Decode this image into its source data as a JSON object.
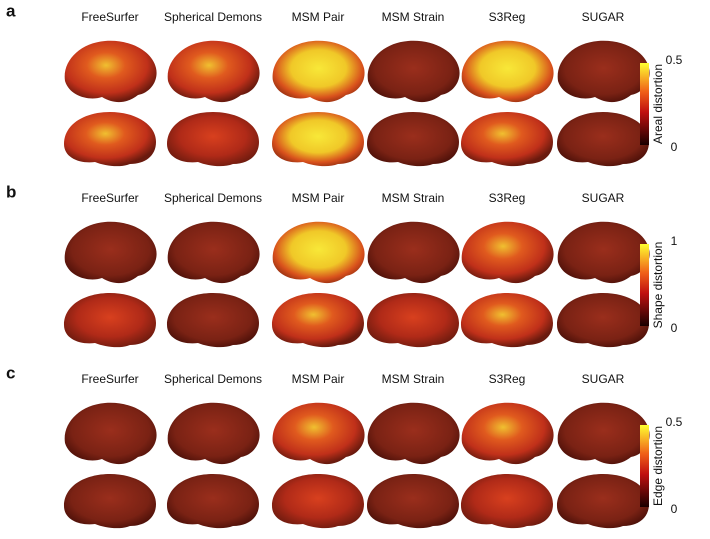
{
  "panels": [
    {
      "label": "a",
      "methods": [
        "FreeSurfer",
        "Spherical Demons",
        "MSM Pair",
        "MSM Strain",
        "S3Reg",
        "SUGAR"
      ],
      "colorbar": {
        "title": "Areal distortion",
        "max": 0.5,
        "min": 0
      }
    },
    {
      "label": "b",
      "methods": [
        "FreeSurfer",
        "Spherical Demons",
        "MSM Pair",
        "MSM Strain",
        "S3Reg",
        "SUGAR"
      ],
      "colorbar": {
        "title": "Shape distortion",
        "max": 1,
        "min": 0
      }
    },
    {
      "label": "c",
      "methods": [
        "FreeSurfer",
        "Spherical Demons",
        "MSM Pair",
        "MSM Strain",
        "S3Reg",
        "SUGAR"
      ],
      "colorbar": {
        "title": "Edge distortion",
        "max": 0.5,
        "min": 0
      }
    }
  ]
}
